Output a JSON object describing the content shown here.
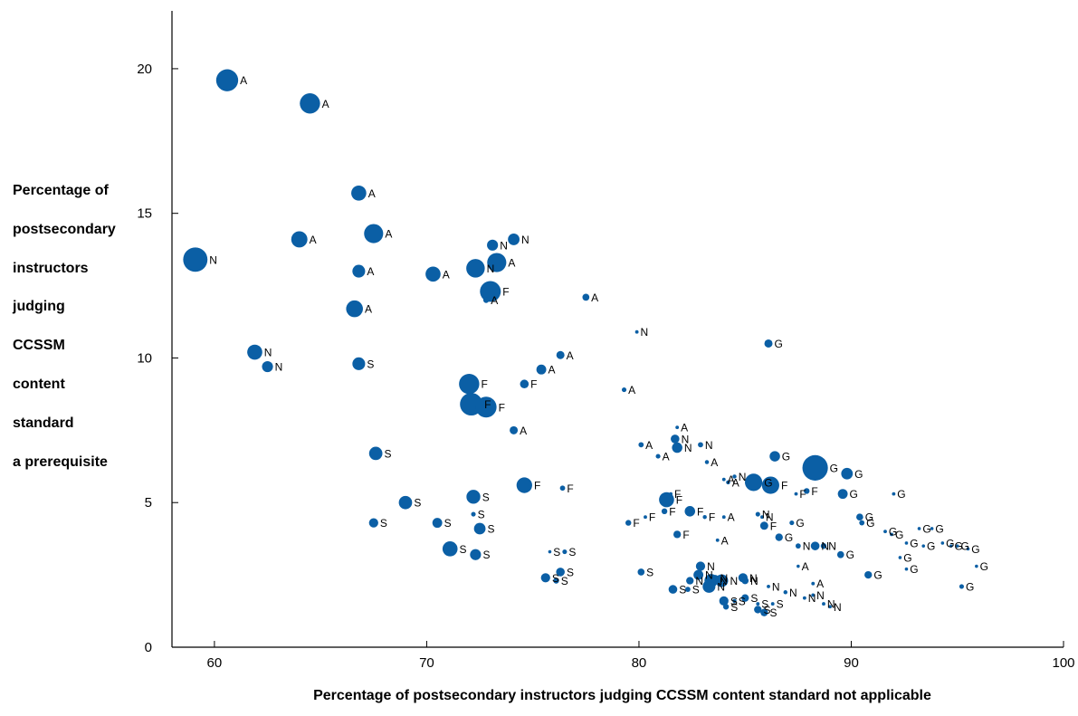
{
  "chart_data": {
    "type": "scatter",
    "ylabel_lines": [
      "Percentage of",
      "postsecondary",
      "instructors",
      "judging",
      "CCSSM",
      "content",
      "standard",
      "a prerequisite"
    ],
    "xlabel": "Percentage of postsecondary instructors judging CCSSM content standard not applicable",
    "xlim": [
      58,
      100
    ],
    "ylim": [
      0,
      22
    ],
    "x_ticks": [
      60,
      70,
      80,
      90,
      100
    ],
    "y_ticks": [
      0,
      5,
      10,
      15,
      20
    ],
    "grid": false,
    "marker_color": "#0b5fa5",
    "points": [
      {
        "x": 60.6,
        "y": 19.6,
        "s": 3.8,
        "label": "A"
      },
      {
        "x": 64.5,
        "y": 18.8,
        "s": 3.5,
        "label": "A"
      },
      {
        "x": 59.1,
        "y": 13.4,
        "s": 4.2,
        "label": "N"
      },
      {
        "x": 66.8,
        "y": 15.7,
        "s": 2.6,
        "label": "A"
      },
      {
        "x": 64.0,
        "y": 14.1,
        "s": 2.8,
        "label": "A"
      },
      {
        "x": 67.5,
        "y": 14.3,
        "s": 3.3,
        "label": "A"
      },
      {
        "x": 66.8,
        "y": 13.0,
        "s": 2.2,
        "label": "A"
      },
      {
        "x": 70.3,
        "y": 12.9,
        "s": 2.6,
        "label": "A"
      },
      {
        "x": 72.3,
        "y": 13.1,
        "s": 3.2,
        "label": "N"
      },
      {
        "x": 73.3,
        "y": 13.3,
        "s": 3.3,
        "label": "A"
      },
      {
        "x": 73.1,
        "y": 13.9,
        "s": 1.9,
        "label": "N"
      },
      {
        "x": 74.1,
        "y": 14.1,
        "s": 2.0,
        "label": "N"
      },
      {
        "x": 73.0,
        "y": 12.3,
        "s": 3.6,
        "label": "F"
      },
      {
        "x": 72.8,
        "y": 12.0,
        "s": 1.0,
        "label": "A"
      },
      {
        "x": 77.5,
        "y": 12.1,
        "s": 1.2,
        "label": "A"
      },
      {
        "x": 66.6,
        "y": 11.7,
        "s": 2.9,
        "label": "A"
      },
      {
        "x": 61.9,
        "y": 10.2,
        "s": 2.6,
        "label": "N"
      },
      {
        "x": 62.5,
        "y": 9.7,
        "s": 1.9,
        "label": "N"
      },
      {
        "x": 66.8,
        "y": 9.8,
        "s": 2.2,
        "label": "S"
      },
      {
        "x": 79.9,
        "y": 10.9,
        "s": 0.6,
        "label": "N"
      },
      {
        "x": 86.1,
        "y": 10.5,
        "s": 1.4,
        "label": "G"
      },
      {
        "x": 76.3,
        "y": 10.1,
        "s": 1.4,
        "label": "A"
      },
      {
        "x": 75.4,
        "y": 9.6,
        "s": 1.7,
        "label": "A"
      },
      {
        "x": 74.6,
        "y": 9.1,
        "s": 1.5,
        "label": "F"
      },
      {
        "x": 72.0,
        "y": 9.1,
        "s": 3.5,
        "label": "F"
      },
      {
        "x": 79.3,
        "y": 8.9,
        "s": 0.8,
        "label": "A"
      },
      {
        "x": 72.1,
        "y": 8.4,
        "s": 3.9,
        "label": "F"
      },
      {
        "x": 72.8,
        "y": 8.3,
        "s": 3.6,
        "label": "F"
      },
      {
        "x": 74.1,
        "y": 7.5,
        "s": 1.4,
        "label": "A"
      },
      {
        "x": 81.8,
        "y": 7.6,
        "s": 0.6,
        "label": "A"
      },
      {
        "x": 67.6,
        "y": 6.7,
        "s": 2.3,
        "label": "S"
      },
      {
        "x": 80.1,
        "y": 7.0,
        "s": 0.9,
        "label": "A"
      },
      {
        "x": 81.7,
        "y": 7.2,
        "s": 1.5,
        "label": "N"
      },
      {
        "x": 81.8,
        "y": 6.9,
        "s": 1.8,
        "label": "N"
      },
      {
        "x": 82.9,
        "y": 7.0,
        "s": 0.9,
        "label": "N"
      },
      {
        "x": 80.9,
        "y": 6.6,
        "s": 0.8,
        "label": "A"
      },
      {
        "x": 83.2,
        "y": 6.4,
        "s": 0.7,
        "label": "A"
      },
      {
        "x": 86.4,
        "y": 6.6,
        "s": 1.8,
        "label": "G"
      },
      {
        "x": 88.3,
        "y": 6.2,
        "s": 4.4,
        "label": "G"
      },
      {
        "x": 89.8,
        "y": 6.0,
        "s": 2.0,
        "label": "G"
      },
      {
        "x": 84.5,
        "y": 5.9,
        "s": 0.7,
        "label": "N"
      },
      {
        "x": 84.2,
        "y": 5.7,
        "s": 0.7,
        "label": "A"
      },
      {
        "x": 85.4,
        "y": 5.7,
        "s": 3.0,
        "label": "G"
      },
      {
        "x": 86.2,
        "y": 5.6,
        "s": 3.0,
        "label": "F"
      },
      {
        "x": 87.4,
        "y": 5.3,
        "s": 0.6,
        "label": "F"
      },
      {
        "x": 87.9,
        "y": 5.4,
        "s": 1.0,
        "label": "F"
      },
      {
        "x": 89.6,
        "y": 5.3,
        "s": 1.7,
        "label": "G"
      },
      {
        "x": 92.0,
        "y": 5.3,
        "s": 0.6,
        "label": "G"
      },
      {
        "x": 69.0,
        "y": 5.0,
        "s": 2.3,
        "label": "S"
      },
      {
        "x": 72.2,
        "y": 5.2,
        "s": 2.4,
        "label": "S"
      },
      {
        "x": 74.6,
        "y": 5.6,
        "s": 2.7,
        "label": "F"
      },
      {
        "x": 76.4,
        "y": 5.5,
        "s": 0.9,
        "label": "F"
      },
      {
        "x": 81.3,
        "y": 5.1,
        "s": 2.6,
        "label": "F"
      },
      {
        "x": 81.5,
        "y": 5.3,
        "s": 0.6,
        "label": "F"
      },
      {
        "x": 81.2,
        "y": 4.7,
        "s": 1.0,
        "label": "F"
      },
      {
        "x": 82.4,
        "y": 4.7,
        "s": 1.8,
        "label": "F"
      },
      {
        "x": 83.1,
        "y": 4.5,
        "s": 0.7,
        "label": "F"
      },
      {
        "x": 84.0,
        "y": 4.5,
        "s": 0.6,
        "label": "A"
      },
      {
        "x": 80.3,
        "y": 4.5,
        "s": 0.6,
        "label": "F"
      },
      {
        "x": 79.5,
        "y": 4.3,
        "s": 1.0,
        "label": "F"
      },
      {
        "x": 85.6,
        "y": 4.6,
        "s": 0.8,
        "label": "N"
      },
      {
        "x": 85.8,
        "y": 4.5,
        "s": 0.6,
        "label": "N"
      },
      {
        "x": 85.9,
        "y": 4.2,
        "s": 1.4,
        "label": "F"
      },
      {
        "x": 87.2,
        "y": 4.3,
        "s": 0.8,
        "label": "G"
      },
      {
        "x": 90.4,
        "y": 4.5,
        "s": 1.2,
        "label": "G"
      },
      {
        "x": 90.5,
        "y": 4.3,
        "s": 0.9,
        "label": "G"
      },
      {
        "x": 67.5,
        "y": 4.3,
        "s": 1.6,
        "label": "S"
      },
      {
        "x": 70.5,
        "y": 4.3,
        "s": 1.7,
        "label": "S"
      },
      {
        "x": 72.2,
        "y": 4.6,
        "s": 0.8,
        "label": "S"
      },
      {
        "x": 72.5,
        "y": 4.1,
        "s": 2.0,
        "label": "S"
      },
      {
        "x": 81.8,
        "y": 3.9,
        "s": 1.3,
        "label": "F"
      },
      {
        "x": 83.7,
        "y": 3.7,
        "s": 0.6,
        "label": "A"
      },
      {
        "x": 86.6,
        "y": 3.8,
        "s": 1.3,
        "label": "G"
      },
      {
        "x": 87.5,
        "y": 3.5,
        "s": 0.9,
        "label": "N"
      },
      {
        "x": 88.3,
        "y": 3.5,
        "s": 1.5,
        "label": "N"
      },
      {
        "x": 88.7,
        "y": 3.5,
        "s": 1.0,
        "label": "N"
      },
      {
        "x": 89.5,
        "y": 3.2,
        "s": 1.2,
        "label": "G"
      },
      {
        "x": 91.6,
        "y": 4.0,
        "s": 0.6,
        "label": "G"
      },
      {
        "x": 91.9,
        "y": 3.9,
        "s": 0.6,
        "label": "G"
      },
      {
        "x": 92.3,
        "y": 3.1,
        "s": 0.5,
        "label": "G"
      },
      {
        "x": 92.6,
        "y": 3.6,
        "s": 0.5,
        "label": "G"
      },
      {
        "x": 92.6,
        "y": 2.7,
        "s": 0.5,
        "label": "G"
      },
      {
        "x": 93.2,
        "y": 4.1,
        "s": 0.5,
        "label": "G"
      },
      {
        "x": 93.4,
        "y": 3.5,
        "s": 0.5,
        "label": "G"
      },
      {
        "x": 93.8,
        "y": 4.1,
        "s": 0.5,
        "label": "G"
      },
      {
        "x": 94.3,
        "y": 3.6,
        "s": 0.5,
        "label": "G"
      },
      {
        "x": 94.7,
        "y": 3.5,
        "s": 0.5,
        "label": "G"
      },
      {
        "x": 95.0,
        "y": 3.5,
        "s": 0.5,
        "label": "G"
      },
      {
        "x": 95.5,
        "y": 3.4,
        "s": 0.5,
        "label": "G"
      },
      {
        "x": 95.9,
        "y": 2.8,
        "s": 0.5,
        "label": "G"
      },
      {
        "x": 95.2,
        "y": 2.1,
        "s": 0.8,
        "label": "G"
      },
      {
        "x": 90.8,
        "y": 2.5,
        "s": 1.3,
        "label": "G"
      },
      {
        "x": 84.0,
        "y": 5.8,
        "s": 0.6,
        "label": "A"
      },
      {
        "x": 71.1,
        "y": 3.4,
        "s": 2.6,
        "label": "S"
      },
      {
        "x": 72.3,
        "y": 3.2,
        "s": 1.9,
        "label": "S"
      },
      {
        "x": 75.8,
        "y": 3.3,
        "s": 0.5,
        "label": "S"
      },
      {
        "x": 76.5,
        "y": 3.3,
        "s": 0.8,
        "label": "S"
      },
      {
        "x": 75.6,
        "y": 2.4,
        "s": 1.6,
        "label": "S"
      },
      {
        "x": 76.1,
        "y": 2.3,
        "s": 1.0,
        "label": "S"
      },
      {
        "x": 76.3,
        "y": 2.6,
        "s": 1.5,
        "label": "S"
      },
      {
        "x": 80.1,
        "y": 2.6,
        "s": 1.2,
        "label": "S"
      },
      {
        "x": 81.6,
        "y": 2.0,
        "s": 1.5,
        "label": "S"
      },
      {
        "x": 82.3,
        "y": 2.0,
        "s": 0.9,
        "label": "S"
      },
      {
        "x": 82.4,
        "y": 2.3,
        "s": 1.3,
        "label": "N"
      },
      {
        "x": 82.9,
        "y": 2.8,
        "s": 1.6,
        "label": "N"
      },
      {
        "x": 82.8,
        "y": 2.5,
        "s": 1.7,
        "label": "N"
      },
      {
        "x": 83.4,
        "y": 2.3,
        "s": 2.3,
        "label": "N"
      },
      {
        "x": 83.3,
        "y": 2.1,
        "s": 2.2,
        "label": "N"
      },
      {
        "x": 83.6,
        "y": 2.4,
        "s": 1.0,
        "label": "N"
      },
      {
        "x": 83.9,
        "y": 2.3,
        "s": 2.2,
        "label": "N"
      },
      {
        "x": 84.9,
        "y": 2.4,
        "s": 1.6,
        "label": "N"
      },
      {
        "x": 85.0,
        "y": 2.3,
        "s": 1.2,
        "label": "N"
      },
      {
        "x": 86.1,
        "y": 2.1,
        "s": 0.6,
        "label": "N"
      },
      {
        "x": 84.0,
        "y": 1.6,
        "s": 1.6,
        "label": "S"
      },
      {
        "x": 84.1,
        "y": 1.4,
        "s": 1.0,
        "label": "S"
      },
      {
        "x": 84.5,
        "y": 1.6,
        "s": 0.7,
        "label": "S"
      },
      {
        "x": 85.0,
        "y": 1.7,
        "s": 1.3,
        "label": "S"
      },
      {
        "x": 85.6,
        "y": 1.3,
        "s": 1.3,
        "label": "S"
      },
      {
        "x": 85.9,
        "y": 1.2,
        "s": 1.3,
        "label": "S"
      },
      {
        "x": 86.3,
        "y": 1.5,
        "s": 0.6,
        "label": "S"
      },
      {
        "x": 86.9,
        "y": 1.9,
        "s": 0.7,
        "label": "N"
      },
      {
        "x": 87.8,
        "y": 1.7,
        "s": 0.6,
        "label": "N"
      },
      {
        "x": 88.2,
        "y": 1.8,
        "s": 0.6,
        "label": "N"
      },
      {
        "x": 88.7,
        "y": 1.5,
        "s": 0.6,
        "label": "N"
      },
      {
        "x": 89.0,
        "y": 1.4,
        "s": 0.6,
        "label": "N"
      },
      {
        "x": 87.5,
        "y": 2.8,
        "s": 0.5,
        "label": "A"
      },
      {
        "x": 88.2,
        "y": 2.2,
        "s": 0.6,
        "label": "A"
      },
      {
        "x": 85.6,
        "y": 1.5,
        "s": 0.6,
        "label": "S"
      }
    ]
  }
}
